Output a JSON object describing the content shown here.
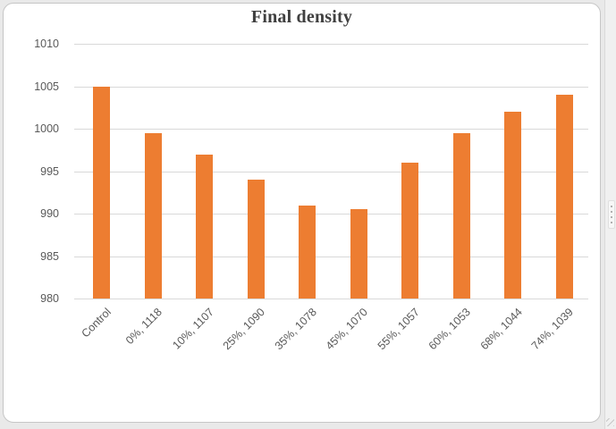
{
  "chart_data": {
    "type": "bar",
    "title": "Final density",
    "categories": [
      "Control",
      "0%, 1118",
      "10%, 1107",
      "25%, 1090",
      "35%, 1078",
      "45%, 1070",
      "55%, 1057",
      "60%, 1053",
      "68%, 1044",
      "74%, 1039"
    ],
    "values": [
      1005,
      999.5,
      997,
      994,
      991,
      990.5,
      996,
      999.5,
      1002,
      1004
    ],
    "xlabel": "",
    "ylabel": "",
    "ylim": [
      980,
      1010
    ],
    "yticks": [
      980,
      985,
      990,
      995,
      1000,
      1005,
      1010
    ],
    "grid": true,
    "legend_position": "none",
    "colors": {
      "bar": "#ED7D31",
      "gridline": "#D9D9D9",
      "axis_label": "#595959",
      "title": "#404040",
      "plot_background": "#FFFFFF"
    }
  },
  "window": {
    "splitter_grip_icon": "vertical-grip-dots",
    "resize_corner_icon": "resize-grip"
  }
}
